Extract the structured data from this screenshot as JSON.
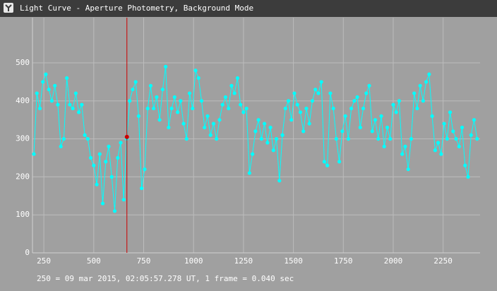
{
  "chart_data": {
    "type": "line",
    "title": "Light Curve - Aperture Photometry, Background Mode",
    "footer": "250 = 09 mar 2015, 02:05:57.278 UT, 1 frame = 0.040 sec",
    "xlim": [
      193,
      2435
    ],
    "ylim": [
      0,
      619
    ],
    "xticks": [
      250,
      500,
      750,
      1000,
      1250,
      1500,
      1750,
      2000,
      2250
    ],
    "yticks": [
      0,
      100,
      200,
      300,
      400,
      500
    ],
    "grid": true,
    "cursor": {
      "x": 666,
      "value": 305,
      "color": "#cc0000"
    },
    "x": [
      200,
      215,
      230,
      245,
      260,
      275,
      290,
      305,
      320,
      335,
      350,
      365,
      380,
      395,
      410,
      425,
      440,
      455,
      470,
      485,
      500,
      515,
      530,
      545,
      560,
      575,
      590,
      605,
      620,
      635,
      650,
      665,
      680,
      695,
      710,
      725,
      740,
      755,
      770,
      785,
      800,
      815,
      830,
      845,
      860,
      875,
      890,
      905,
      920,
      935,
      950,
      965,
      980,
      995,
      1010,
      1025,
      1040,
      1055,
      1070,
      1085,
      1100,
      1115,
      1130,
      1145,
      1160,
      1175,
      1190,
      1205,
      1220,
      1235,
      1250,
      1265,
      1280,
      1295,
      1310,
      1325,
      1340,
      1355,
      1370,
      1385,
      1400,
      1415,
      1430,
      1445,
      1460,
      1475,
      1490,
      1505,
      1520,
      1535,
      1550,
      1565,
      1580,
      1595,
      1610,
      1625,
      1640,
      1655,
      1670,
      1685,
      1700,
      1715,
      1730,
      1745,
      1760,
      1775,
      1790,
      1805,
      1820,
      1835,
      1850,
      1865,
      1880,
      1895,
      1910,
      1925,
      1940,
      1955,
      1970,
      1985,
      2000,
      2015,
      2030,
      2045,
      2060,
      2075,
      2090,
      2105,
      2120,
      2135,
      2150,
      2165,
      2180,
      2195,
      2210,
      2225,
      2240,
      2255,
      2270,
      2285,
      2300,
      2315,
      2330,
      2345,
      2360,
      2375,
      2390,
      2405,
      2420
    ],
    "series": [
      {
        "color": "#00ffff",
        "values": [
          260,
          420,
          380,
          450,
          470,
          430,
          400,
          440,
          390,
          280,
          300,
          460,
          390,
          380,
          420,
          370,
          390,
          310,
          300,
          250,
          230,
          180,
          260,
          130,
          240,
          280,
          200,
          110,
          250,
          290,
          140,
          300,
          400,
          430,
          450,
          360,
          170,
          220,
          380,
          440,
          380,
          410,
          350,
          430,
          490,
          330,
          380,
          410,
          370,
          400,
          340,
          300,
          420,
          380,
          480,
          460,
          400,
          330,
          360,
          310,
          340,
          300,
          350,
          390,
          410,
          380,
          440,
          420,
          460,
          390,
          370,
          380,
          210,
          260,
          320,
          350,
          300,
          340,
          290,
          330,
          270,
          300,
          190,
          310,
          380,
          400,
          350,
          420,
          390,
          370,
          320,
          380,
          340,
          400,
          430,
          420,
          450,
          240,
          230,
          420,
          380,
          300,
          240,
          320,
          360,
          300,
          380,
          400,
          410,
          330,
          380,
          420,
          440,
          320,
          350,
          300,
          360,
          280,
          330,
          300,
          390,
          370,
          400,
          260,
          280,
          220,
          300,
          420,
          380,
          440,
          400,
          450,
          470,
          360,
          270,
          290,
          260,
          340,
          300,
          370,
          320,
          300,
          280,
          330,
          230,
          200,
          310,
          350,
          300
        ]
      }
    ]
  }
}
